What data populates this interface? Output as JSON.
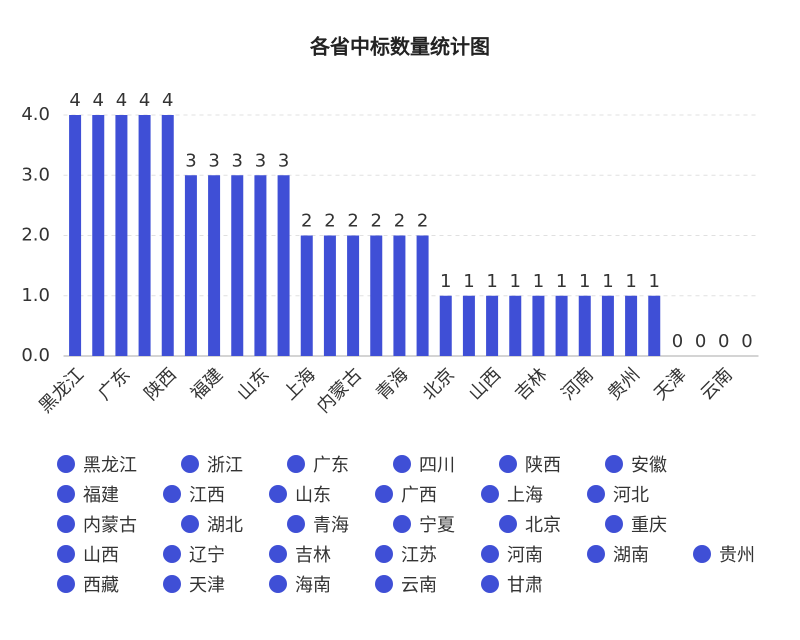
{
  "chart_data": {
    "type": "bar",
    "title": "各省中标数量统计图",
    "categories": [
      "黑龙江",
      "浙江",
      "广东",
      "四川",
      "陕西",
      "安徽",
      "福建",
      "江西",
      "山东",
      "广西",
      "上海",
      "河北",
      "内蒙古",
      "湖北",
      "青海",
      "宁夏",
      "北京",
      "重庆",
      "山西",
      "辽宁",
      "吉林",
      "江苏",
      "河南",
      "湖南",
      "贵州",
      "西藏",
      "天津",
      "海南",
      "云南",
      "甘肃"
    ],
    "values": [
      4,
      4,
      4,
      4,
      4,
      3,
      3,
      3,
      3,
      3,
      2,
      2,
      2,
      2,
      2,
      2,
      1,
      1,
      1,
      1,
      1,
      1,
      1,
      1,
      1,
      1,
      0,
      0,
      0,
      0
    ],
    "color": "#3f4fd6",
    "ylim": [
      0,
      4
    ],
    "yticks": [
      {
        "value": 0,
        "label": "0.0"
      },
      {
        "value": 1,
        "label": "1.0"
      },
      {
        "value": 2,
        "label": "2.0"
      },
      {
        "value": 3,
        "label": "3.0"
      },
      {
        "value": 4,
        "label": "4.0"
      }
    ],
    "grid": true
  }
}
